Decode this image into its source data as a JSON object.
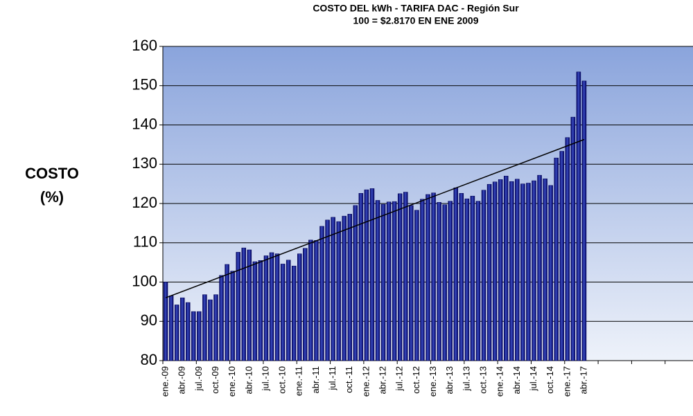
{
  "chart_data": {
    "type": "bar",
    "title": "COSTO DEL kWh - TARIFA DAC - Región Sur",
    "subtitle": "100 = $2.8170 EN ENE 2009",
    "ylabel": [
      "COSTO",
      "(%)"
    ],
    "color": "#0d1a80",
    "ylim": [
      80,
      160
    ],
    "yticks": [
      80,
      90,
      100,
      110,
      120,
      130,
      140,
      150,
      160
    ],
    "grid": true,
    "categories": [
      "ene.-09",
      null,
      null,
      "abr.-09",
      null,
      null,
      "jul.-09",
      null,
      null,
      "oct.-09",
      null,
      null,
      "ene.-10",
      null,
      null,
      "abr.-10",
      null,
      null,
      "jul.-10",
      null,
      null,
      "oct.-10",
      null,
      null,
      "ene.-11",
      null,
      null,
      "abr.-11",
      null,
      null,
      "jul.-11",
      null,
      null,
      "oct.-11",
      null,
      null,
      "ene.-12",
      null,
      null,
      "abr.-12",
      null,
      null,
      "jul.-12",
      null,
      null,
      "oct.-12",
      null,
      null,
      "ene.-13",
      null,
      null,
      "abr.-13",
      null,
      null,
      "jul.-13",
      null,
      null,
      "oct.-13",
      null,
      null,
      "ene.-14",
      null,
      null,
      "abr.-14",
      null,
      null,
      "jul.-14",
      null,
      null,
      "oct.-14",
      null,
      null,
      "ene.-17",
      null,
      null,
      "abr.-17",
      null,
      null,
      null,
      null,
      null,
      null,
      null,
      null,
      null,
      null,
      null,
      null,
      null,
      null,
      null,
      null,
      null,
      null,
      null
    ],
    "values": [
      100,
      96.5,
      94.2,
      96,
      94.8,
      92.5,
      92.5,
      96.8,
      95.5,
      96.8,
      101.7,
      104.5,
      102.8,
      107.6,
      108.7,
      108.2,
      105.2,
      105.5,
      106.7,
      107.5,
      107.2,
      104.6,
      105.6,
      104.1,
      107.2,
      108.6,
      110.7,
      110.6,
      114.2,
      115.8,
      116.5,
      115.4,
      116.8,
      117.3,
      119.5,
      122.6,
      123.5,
      123.8,
      120.8,
      119.8,
      120.4,
      120.5,
      122.5,
      122.9,
      119.5,
      118.3,
      121.1,
      122.3,
      122.7,
      120.3,
      119.7,
      120.6,
      124.0,
      122.6,
      121.2,
      121.9,
      120.6,
      123.4,
      124.9,
      125.5,
      126.1,
      127.0,
      125.6,
      126.2,
      125.0,
      125.2,
      125.8,
      127.2,
      126.3,
      124.6,
      131.6,
      133.3,
      136.8,
      142.0,
      153.5,
      151.2,
      null,
      null,
      null,
      null,
      null,
      null,
      null,
      null,
      null,
      null,
      null,
      null,
      null,
      null,
      null,
      null,
      null,
      null,
      null
    ],
    "trendline": [
      96.0,
      136.3
    ]
  }
}
